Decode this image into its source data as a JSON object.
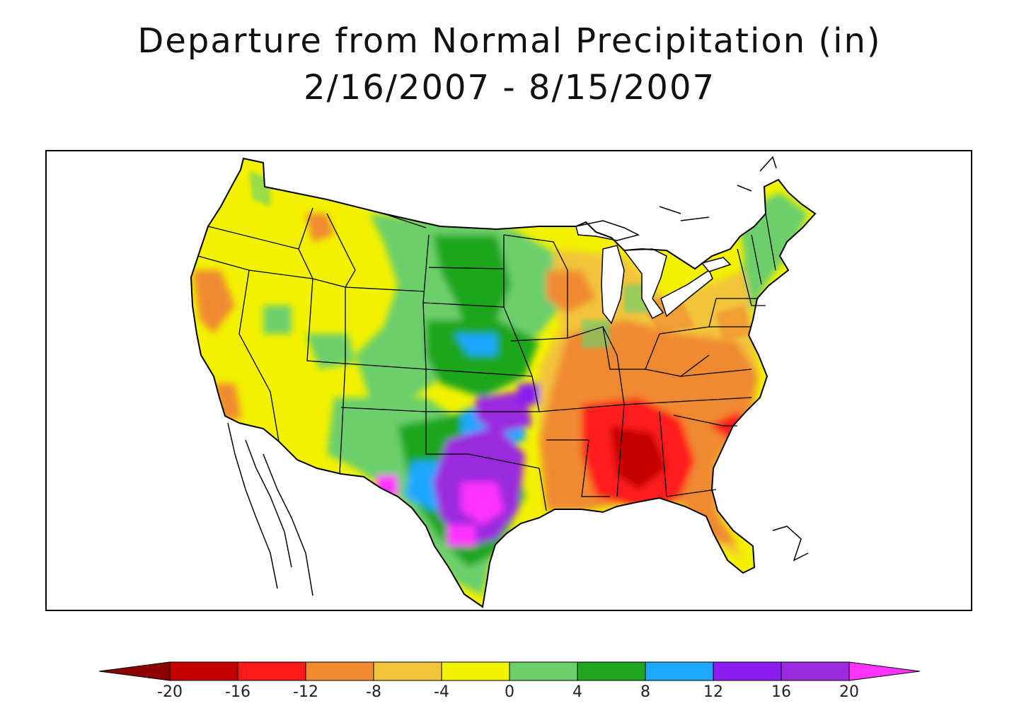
{
  "title": {
    "line1": "Departure from Normal Precipitation (in)",
    "line2": "2/16/2007 - 8/15/2007"
  },
  "legend": {
    "ticks": [
      "-20",
      "-16",
      "-12",
      "-8",
      "-4",
      "0",
      "4",
      "8",
      "12",
      "16",
      "20"
    ],
    "colors": {
      "below_-20": "#8b0000",
      "-20_to_-16": "#c40000",
      "-16_to_-12": "#ff1a1a",
      "-12_to_-8": "#f08a32",
      "-8_to_-4": "#f2c43a",
      "-4_to_0": "#f2f200",
      "0_to_4": "#6ccf6c",
      "4_to_8": "#1fa61f",
      "8_to_12": "#1ea7ff",
      "12_to_16": "#8a1ef2",
      "16_to_20": "#9b2bdf",
      "above_20": "#ff33ff"
    }
  }
}
